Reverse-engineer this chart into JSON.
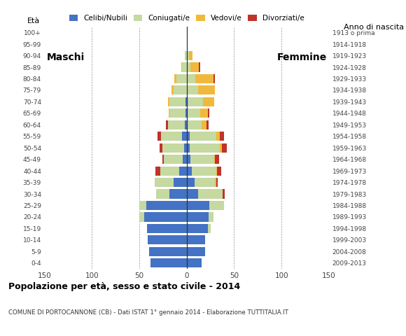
{
  "age_groups": [
    "0-4",
    "5-9",
    "10-14",
    "15-19",
    "20-24",
    "25-29",
    "30-34",
    "35-39",
    "40-44",
    "45-49",
    "50-54",
    "55-59",
    "60-64",
    "65-69",
    "70-74",
    "75-79",
    "80-84",
    "85-89",
    "90-94",
    "95-99",
    "100+"
  ],
  "birth_years": [
    "2009-2013",
    "2004-2008",
    "1999-2003",
    "1994-1998",
    "1989-1993",
    "1984-1988",
    "1979-1983",
    "1974-1978",
    "1969-1973",
    "1964-1968",
    "1959-1963",
    "1954-1958",
    "1949-1953",
    "1944-1948",
    "1939-1943",
    "1934-1938",
    "1929-1933",
    "1924-1928",
    "1919-1923",
    "1914-1918",
    "1913 o prima"
  ],
  "male": {
    "celibi": [
      38,
      40,
      41,
      42,
      45,
      43,
      18,
      14,
      8,
      4,
      3,
      5,
      2,
      1,
      1,
      0,
      0,
      0,
      0,
      0,
      0
    ],
    "coniugati": [
      0,
      0,
      0,
      0,
      4,
      6,
      14,
      20,
      20,
      20,
      23,
      22,
      18,
      17,
      17,
      14,
      11,
      5,
      2,
      0,
      0
    ],
    "vedovi": [
      0,
      0,
      0,
      0,
      0,
      0,
      0,
      0,
      0,
      0,
      0,
      0,
      0,
      1,
      2,
      2,
      2,
      1,
      0,
      0,
      0
    ],
    "divorziati": [
      0,
      0,
      0,
      0,
      0,
      0,
      0,
      0,
      5,
      2,
      3,
      4,
      2,
      0,
      0,
      0,
      0,
      0,
      0,
      0,
      0
    ]
  },
  "female": {
    "nubili": [
      16,
      19,
      19,
      22,
      23,
      24,
      12,
      8,
      5,
      4,
      3,
      3,
      1,
      0,
      0,
      0,
      1,
      0,
      0,
      0,
      0
    ],
    "coniugate": [
      0,
      0,
      0,
      3,
      5,
      15,
      26,
      22,
      26,
      25,
      32,
      28,
      15,
      14,
      17,
      12,
      8,
      4,
      2,
      0,
      0
    ],
    "vedove": [
      0,
      0,
      0,
      0,
      0,
      0,
      0,
      1,
      1,
      1,
      2,
      4,
      5,
      8,
      12,
      18,
      19,
      9,
      4,
      1,
      0
    ],
    "divorziate": [
      0,
      0,
      0,
      0,
      0,
      0,
      2,
      2,
      4,
      4,
      5,
      4,
      2,
      2,
      0,
      0,
      2,
      1,
      0,
      0,
      0
    ]
  },
  "colors": {
    "celibi_nubili": "#4472c4",
    "coniugati": "#c5d9a0",
    "vedovi": "#f0b93c",
    "divorziati": "#c0322b"
  },
  "xlim": 150,
  "title": "Popolazione per età, sesso e stato civile - 2014",
  "subtitle": "COMUNE DI PORTOCANNONE (CB) - Dati ISTAT 1° gennaio 2014 - Elaborazione TUTTITALIA.IT",
  "ylabel_left": "Età",
  "ylabel_right": "Anno di nascita",
  "xlabel_left": "Maschi",
  "xlabel_right": "Femmine"
}
